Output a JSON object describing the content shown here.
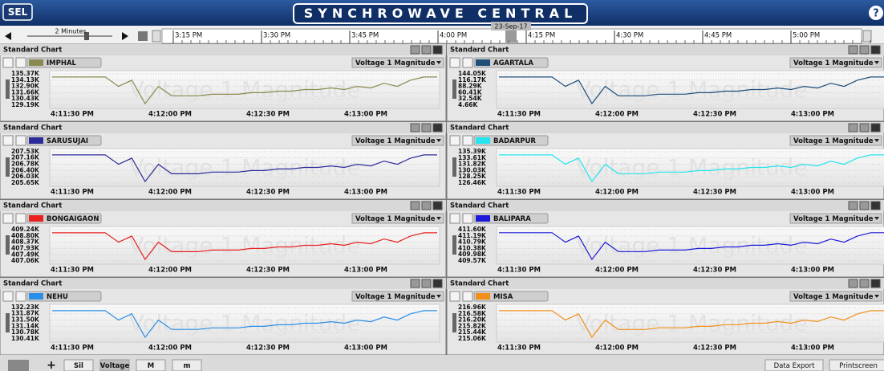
{
  "header": {
    "logo": "SEL",
    "title": "SYNCHROWAVE CENTRAL",
    "help": "?"
  },
  "timeline": {
    "zoom": "2 Minutes",
    "date": "23-Sep-17",
    "times": [
      "3:15 PM",
      "3:30 PM",
      "3:45 PM",
      "4:00 PM",
      "4:15 PM",
      "4:30 PM",
      "4:45 PM",
      "5:00 PM"
    ]
  },
  "panels": [
    {
      "heading": "Standard Chart",
      "station": "IMPHAL",
      "measure": "Voltage 1 Magnitude",
      "chart": {
        "type": "line",
        "color": "#8a8a50",
        "ylim": [
          129190,
          135370
        ],
        "yticks": [
          {
            "value": 135370,
            "label": "135.37K"
          },
          {
            "value": 134130,
            "label": "134.13K"
          },
          {
            "value": 132900,
            "label": "132.90K"
          },
          {
            "value": 131660,
            "label": "131.66K"
          },
          {
            "value": 130430,
            "label": "130.43K"
          },
          {
            "value": 129190,
            "label": "129.19K"
          }
        ],
        "xlabels": [
          "4:11:30 PM",
          "4:12:00 PM",
          "4:12:30 PM",
          "4:13:00 PM"
        ],
        "values": [
          134750,
          134750,
          134750,
          134750,
          134750,
          132900,
          134130,
          129500,
          132900,
          131040,
          131040,
          131040,
          131350,
          131350,
          131350,
          131660,
          131660,
          131970,
          131970,
          132280,
          132280,
          132590,
          132280,
          132900,
          132590,
          133520,
          132900,
          134130,
          134750,
          134750
        ]
      }
    },
    {
      "heading": "Standard Chart",
      "station": "AGARTALA",
      "measure": "Voltage 1 Magnitude",
      "chart": {
        "type": "line",
        "color": "#1f4e79",
        "ylim": [
          4660,
          144050
        ],
        "yticks": [
          {
            "value": 144050,
            "label": "144.05K"
          },
          {
            "value": 116170,
            "label": "116.17K"
          },
          {
            "value": 88290,
            "label": "88.29K"
          },
          {
            "value": 60410,
            "label": "60.41K"
          },
          {
            "value": 32540,
            "label": "32.54K"
          },
          {
            "value": 4660,
            "label": "4.66K"
          }
        ],
        "xlabels": [
          "4:11:30 PM",
          "4:12:00 PM",
          "4:12:30 PM",
          "4:13:00 PM"
        ],
        "values": [
          130110,
          130110,
          130110,
          130110,
          130110,
          88290,
          116170,
          11630,
          88290,
          46480,
          46480,
          46480,
          53450,
          53450,
          53450,
          60420,
          60420,
          67380,
          67380,
          74360,
          74360,
          81320,
          74360,
          88290,
          81320,
          102230,
          88290,
          116170,
          130110,
          130110
        ]
      }
    },
    {
      "heading": "Standard Chart",
      "station": "SARUSUJAI",
      "measure": "Voltage 1 Magnitude",
      "chart": {
        "type": "line",
        "color": "#2b2b9a",
        "ylim": [
          205650,
          207530
        ],
        "yticks": [
          {
            "value": 207530,
            "label": "207.53K"
          },
          {
            "value": 207160,
            "label": "207.16K"
          },
          {
            "value": 206780,
            "label": "206.78K"
          },
          {
            "value": 206400,
            "label": "206.40K"
          },
          {
            "value": 206030,
            "label": "206.03K"
          },
          {
            "value": 205650,
            "label": "205.65K"
          }
        ],
        "xlabels": [
          "4:11:30 PM",
          "4:12:00 PM",
          "4:12:30 PM",
          "4:13:00 PM"
        ],
        "values": [
          207340,
          207340,
          207340,
          207340,
          207340,
          206780,
          207150,
          205740,
          206780,
          206210,
          206210,
          206210,
          206310,
          206310,
          206310,
          206400,
          206400,
          206500,
          206500,
          206590,
          206590,
          206680,
          206590,
          206780,
          206680,
          206970,
          206780,
          207150,
          207340,
          207340
        ]
      }
    },
    {
      "heading": "Standard Chart",
      "station": "BADARPUR",
      "measure": "Voltage 1 Magnitude",
      "chart": {
        "type": "line",
        "color": "#22e5ef",
        "ylim": [
          126460,
          135390
        ],
        "yticks": [
          {
            "value": 135390,
            "label": "135.39K"
          },
          {
            "value": 133610,
            "label": "133.61K"
          },
          {
            "value": 131820,
            "label": "131.82K"
          },
          {
            "value": 130030,
            "label": "130.03K"
          },
          {
            "value": 128250,
            "label": "128.25K"
          },
          {
            "value": 126460,
            "label": "126.46K"
          }
        ],
        "xlabels": [
          "4:11:30 PM",
          "4:12:00 PM",
          "4:12:30 PM",
          "4:13:00 PM"
        ],
        "values": [
          134500,
          134500,
          134500,
          134500,
          134500,
          131820,
          133600,
          126910,
          131820,
          129140,
          129140,
          129140,
          129590,
          129590,
          129590,
          130030,
          130030,
          130480,
          130480,
          130930,
          130930,
          131370,
          130930,
          131820,
          131370,
          132710,
          131820,
          133600,
          134500,
          134500
        ]
      }
    },
    {
      "heading": "Standard Chart",
      "station": "BONGAIGAON",
      "measure": "Voltage 1 Magnitude",
      "chart": {
        "type": "line",
        "color": "#e82020",
        "ylim": [
          407060,
          409240
        ],
        "yticks": [
          {
            "value": 409240,
            "label": "409.24K"
          },
          {
            "value": 408800,
            "label": "408.80K"
          },
          {
            "value": 408370,
            "label": "408.37K"
          },
          {
            "value": 407930,
            "label": "407.93K"
          },
          {
            "value": 407490,
            "label": "407.49K"
          },
          {
            "value": 407060,
            "label": "407.06K"
          }
        ],
        "xlabels": [
          "4:11:30 PM",
          "4:12:00 PM",
          "4:12:30 PM",
          "4:13:00 PM"
        ],
        "values": [
          409020,
          409020,
          409020,
          409020,
          409020,
          408370,
          408800,
          407170,
          408370,
          407710,
          407710,
          407710,
          407820,
          407820,
          407820,
          407930,
          407930,
          408040,
          408040,
          408150,
          408150,
          408260,
          408150,
          408370,
          408260,
          408590,
          408370,
          408800,
          409020,
          409020
        ]
      }
    },
    {
      "heading": "Standard Chart",
      "station": "BALIPARA",
      "measure": "Voltage 1 Magnitude",
      "chart": {
        "type": "line",
        "color": "#1a1ad8",
        "ylim": [
          409570,
          411600
        ],
        "yticks": [
          {
            "value": 411600,
            "label": "411.60K"
          },
          {
            "value": 411190,
            "label": "411.19K"
          },
          {
            "value": 410790,
            "label": "410.79K"
          },
          {
            "value": 410380,
            "label": "410.38K"
          },
          {
            "value": 409980,
            "label": "409.98K"
          },
          {
            "value": 409570,
            "label": "409.57K"
          }
        ],
        "xlabels": [
          "4:11:30 PM",
          "4:12:00 PM",
          "4:12:30 PM",
          "4:13:00 PM"
        ],
        "values": [
          411400,
          411400,
          411400,
          411400,
          411400,
          410790,
          411190,
          409670,
          410790,
          410180,
          410180,
          410180,
          410280,
          410280,
          410280,
          410380,
          410380,
          410480,
          410480,
          410590,
          410590,
          410690,
          410590,
          410790,
          410690,
          410990,
          410790,
          411190,
          411400,
          411400
        ]
      }
    },
    {
      "heading": "Standard Chart",
      "station": "NEHU",
      "measure": "Voltage 1 Magnitude",
      "chart": {
        "type": "line",
        "color": "#2a8fe8",
        "ylim": [
          130410,
          132230
        ],
        "yticks": [
          {
            "value": 132230,
            "label": "132.23K"
          },
          {
            "value": 131870,
            "label": "131.87K"
          },
          {
            "value": 131500,
            "label": "131.50K"
          },
          {
            "value": 131140,
            "label": "131.14K"
          },
          {
            "value": 130780,
            "label": "130.78K"
          },
          {
            "value": 130410,
            "label": "130.41K"
          }
        ],
        "xlabels": [
          "4:11:30 PM",
          "4:12:00 PM",
          "4:12:30 PM",
          "4:13:00 PM"
        ],
        "values": [
          132050,
          132050,
          132050,
          132050,
          132050,
          131500,
          131870,
          130500,
          131500,
          130960,
          130960,
          130960,
          131050,
          131050,
          131050,
          131140,
          131140,
          131230,
          131230,
          131320,
          131320,
          131410,
          131320,
          131500,
          131410,
          131680,
          131500,
          131870,
          132050,
          132050
        ]
      }
    },
    {
      "heading": "Standard Chart",
      "station": "MISA",
      "measure": "Voltage 1 Magnitude",
      "chart": {
        "type": "line",
        "color": "#f0901a",
        "ylim": [
          215060,
          216960
        ],
        "yticks": [
          {
            "value": 216960,
            "label": "216.96K"
          },
          {
            "value": 216580,
            "label": "216.58K"
          },
          {
            "value": 216200,
            "label": "216.20K"
          },
          {
            "value": 215820,
            "label": "215.82K"
          },
          {
            "value": 215440,
            "label": "215.44K"
          },
          {
            "value": 215060,
            "label": "215.06K"
          }
        ],
        "xlabels": [
          "4:11:30 PM",
          "4:12:00 PM",
          "4:12:30 PM",
          "4:13:00 PM"
        ],
        "values": [
          216770,
          216770,
          216770,
          216770,
          216770,
          216200,
          216580,
          215160,
          216200,
          215630,
          215630,
          215630,
          215730,
          215730,
          215730,
          215820,
          215820,
          215920,
          215920,
          216010,
          216010,
          216110,
          216010,
          216200,
          216110,
          216390,
          216200,
          216580,
          216770,
          216770
        ]
      }
    }
  ],
  "footer": {
    "buttons": [
      "Sil",
      "Voltage",
      "M",
      "m"
    ],
    "actions": [
      "Data Export",
      "Printscreen"
    ]
  }
}
